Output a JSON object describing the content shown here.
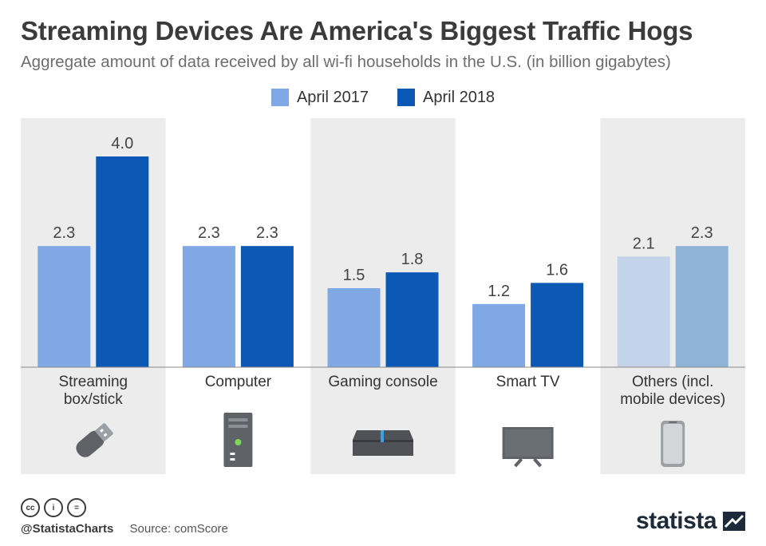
{
  "header": {
    "title": "Streaming Devices Are America's Biggest Traffic Hogs",
    "subtitle": "Aggregate amount of data received by all wi-fi households in the U.S. (in billion gigabytes)"
  },
  "legend": {
    "items": [
      {
        "label": "April 2017",
        "color": "#7fa8e4"
      },
      {
        "label": "April 2018",
        "color": "#0b59b4"
      }
    ]
  },
  "chart_data": {
    "type": "bar",
    "title": "Streaming Devices Are America's Biggest Traffic Hogs",
    "subtitle": "Aggregate amount of data received by all wi-fi households in the U.S. (in billion gigabytes)",
    "xlabel": "",
    "ylabel": "",
    "ylim": [
      0,
      4.0
    ],
    "grid": false,
    "legend_position": "top-center",
    "categories": [
      {
        "lines": [
          "Streaming",
          "box/stick"
        ],
        "icon": "usb-stick-icon",
        "shaded": true
      },
      {
        "lines": [
          "Computer"
        ],
        "icon": "computer-tower-icon",
        "shaded": false
      },
      {
        "lines": [
          "Gaming console"
        ],
        "icon": "gaming-console-icon",
        "shaded": true
      },
      {
        "lines": [
          "Smart TV"
        ],
        "icon": "smart-tv-icon",
        "shaded": false
      },
      {
        "lines": [
          "Others (incl.",
          "mobile devices)"
        ],
        "icon": "smartphone-icon",
        "shaded": true
      }
    ],
    "series": [
      {
        "name": "April 2017",
        "values": [
          2.3,
          2.3,
          1.5,
          1.2,
          2.1
        ],
        "labels": [
          "2.3",
          "2.3",
          "1.5",
          "1.2",
          "2.1"
        ]
      },
      {
        "name": "April 2018",
        "values": [
          4.0,
          2.3,
          1.8,
          1.6,
          2.3
        ],
        "labels": [
          "4.0",
          "2.3",
          "1.8",
          "1.6",
          "2.3"
        ]
      }
    ],
    "colors": {
      "series_2017": "#7fa8e4",
      "series_2018": "#0b59b4",
      "others_2017": "#c2d3ea",
      "others_2018": "#90b3d8",
      "panel_shade": "#ececec",
      "baseline": "#888888",
      "icon": "#5f6368"
    }
  },
  "footer": {
    "handle": "@StatistaCharts",
    "source": "Source: comScore",
    "brand": "statista",
    "license_icons": [
      "cc-icon",
      "attribution-icon",
      "no-derivatives-icon"
    ],
    "license_glyphs": [
      "cc",
      "i",
      "="
    ]
  }
}
